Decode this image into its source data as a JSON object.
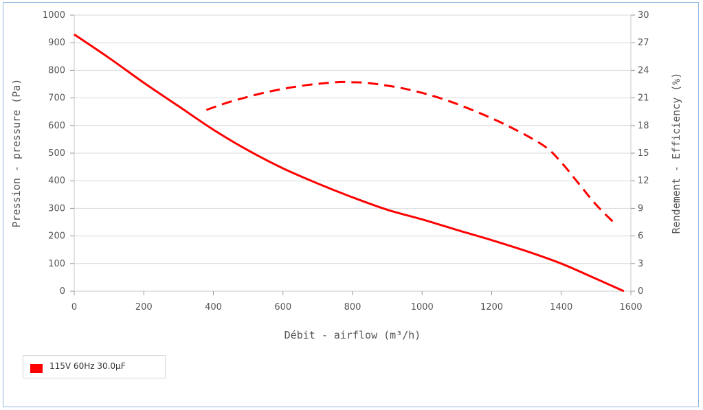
{
  "chart_data": {
    "type": "line",
    "title": "",
    "xlabel": "Débit - airflow (m³/h)",
    "ylabel": "Pression - pressure (Pa)",
    "y2label": "Rendement - Efficiency (%)",
    "xlim": [
      0,
      1600
    ],
    "ylim": [
      0,
      1000
    ],
    "y2lim": [
      0,
      30
    ],
    "x_ticks": [
      "0",
      "200",
      "400",
      "600",
      "800",
      "1000",
      "1200",
      "1400",
      "1600"
    ],
    "y_ticks": [
      "0",
      "100",
      "200",
      "300",
      "400",
      "500",
      "600",
      "700",
      "800",
      "900",
      "1000"
    ],
    "y2_ticks": [
      "0",
      "3",
      "6",
      "9",
      "12",
      "15",
      "18",
      "21",
      "24",
      "27",
      "30"
    ],
    "grid": true,
    "color": "#ff0000",
    "series": [
      {
        "axis": "left",
        "style": "solid",
        "x": [
          0,
          100,
          200,
          300,
          400,
          500,
          600,
          700,
          800,
          900,
          1000,
          1100,
          1200,
          1300,
          1400,
          1500,
          1580
        ],
        "values": [
          930,
          845,
          755,
          670,
          585,
          510,
          445,
          390,
          340,
          295,
          260,
          222,
          185,
          145,
          100,
          45,
          0
        ]
      },
      {
        "axis": "right",
        "style": "dashed",
        "x": [
          380,
          450,
          550,
          650,
          750,
          800,
          850,
          950,
          1050,
          1150,
          1250,
          1350,
          1400,
          1450,
          1500,
          1550
        ],
        "values": [
          19.7,
          20.6,
          21.6,
          22.3,
          22.7,
          22.7,
          22.6,
          22.0,
          21.0,
          19.6,
          17.9,
          15.8,
          14.0,
          11.7,
          9.4,
          7.5
        ]
      }
    ]
  },
  "legend": {
    "items": [
      {
        "label": "115V 60Hz 30.0µF",
        "color": "#ff0000"
      }
    ]
  }
}
